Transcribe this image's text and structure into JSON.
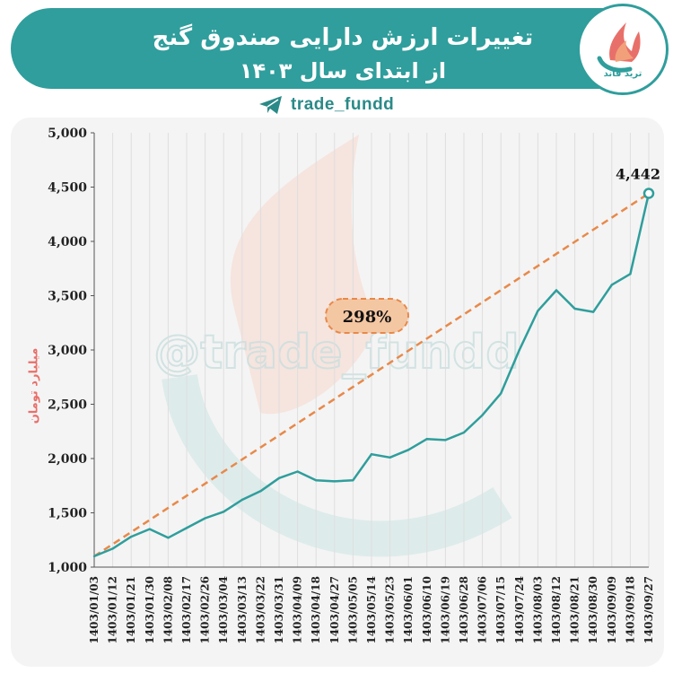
{
  "header": {
    "title_line1": "تغییرات ارزش دارایی صندوق گنج",
    "title_line2": "از ابتدای سال ۱۴۰۳",
    "logo_text": "ترید فاند",
    "handle": "trade_fundd"
  },
  "watermark": "@trade_fundd",
  "colors": {
    "line": "#2f9e9c",
    "trend": "#e8894a",
    "badge_fill": "#f4c7a3",
    "banner": "#2f9e9c",
    "ylabel": "#e8706a"
  },
  "chart_data": {
    "type": "line",
    "title": "تغییرات ارزش دارایی صندوق گنج از ابتدای سال ۱۴۰۳",
    "ylabel": "میلیارد تومان",
    "xlabel": "",
    "ylim": [
      1000,
      5000
    ],
    "yticks": [
      "1,000",
      "1,500",
      "2,000",
      "2,500",
      "3,000",
      "3,500",
      "4,000",
      "4,500",
      "5,000"
    ],
    "categories": [
      "1403/01/03",
      "1403/01/12",
      "1403/01/21",
      "1403/01/30",
      "1403/02/08",
      "1403/02/17",
      "1403/02/26",
      "1403/03/04",
      "1403/03/13",
      "1403/03/22",
      "1403/03/31",
      "1403/04/09",
      "1403/04/18",
      "1403/04/27",
      "1403/05/05",
      "1403/05/14",
      "1403/05/23",
      "1403/06/01",
      "1403/06/10",
      "1403/06/19",
      "1403/06/28",
      "1403/07/06",
      "1403/07/15",
      "1403/07/24",
      "1403/08/03",
      "1403/08/12",
      "1403/08/21",
      "1403/08/30",
      "1403/09/09",
      "1403/09/18",
      "1403/09/27"
    ],
    "series": [
      {
        "values": [
          1100,
          1170,
          1280,
          1350,
          1270,
          1360,
          1450,
          1510,
          1620,
          1700,
          1820,
          1880,
          1800,
          1790,
          1800,
          2040,
          2010,
          2080,
          2180,
          2170,
          2240,
          2400,
          2600,
          3000,
          3360,
          3550,
          3380,
          3350,
          3600,
          3700,
          4442
        ]
      }
    ],
    "trend": {
      "from": 1100,
      "to": 4442
    },
    "annotations": {
      "end_value": "4,442",
      "change": "298%"
    },
    "grid": "vertical"
  }
}
